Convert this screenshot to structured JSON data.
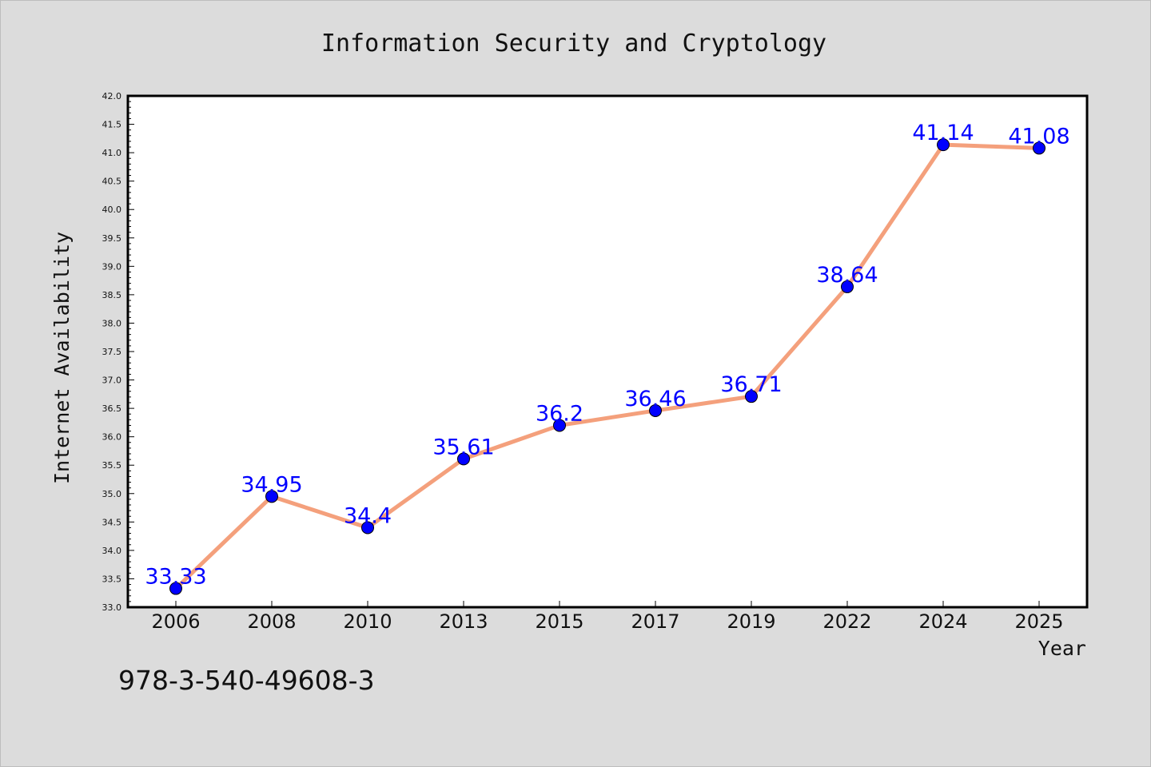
{
  "chart_data": {
    "type": "line",
    "title": "Information Security and Cryptology",
    "xlabel": "Year",
    "ylabel": "Internet Availability",
    "categories": [
      "2006",
      "2008",
      "2010",
      "2013",
      "2015",
      "2017",
      "2019",
      "2022",
      "2024",
      "2025"
    ],
    "series": [
      {
        "values": [
          33.33,
          34.95,
          34.4,
          35.61,
          36.2,
          36.46,
          36.71,
          38.64,
          41.14,
          41.08
        ],
        "labels": [
          "33.33",
          "34.95",
          "34.4",
          "35.61",
          "36.2",
          "36.46",
          "36.71",
          "38.64",
          "41.14",
          "41.08"
        ],
        "line_color": "#f4a07c",
        "marker_color": "#0000ff"
      }
    ],
    "ylim": [
      33.0,
      42.0
    ],
    "yticks": [
      "33.0",
      "33.5",
      "34.0",
      "34.5",
      "35.0",
      "35.5",
      "36.0",
      "36.5",
      "37.0",
      "37.5",
      "38.0",
      "38.5",
      "39.0",
      "39.5",
      "40.0",
      "40.5",
      "41.0",
      "41.5",
      "42.0"
    ],
    "grid": false,
    "legend": "none",
    "label_color": "#0000ff",
    "background_color": "#dcdcdc",
    "plot_background_color": "#ffffff"
  },
  "caption": "978-3-540-49608-3"
}
